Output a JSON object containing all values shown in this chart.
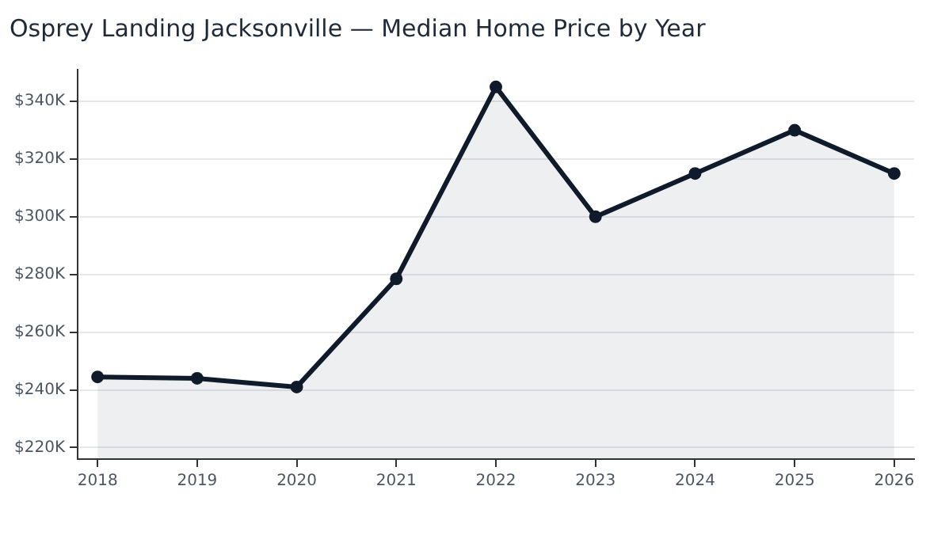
{
  "chart_data": {
    "type": "area",
    "title": "Osprey Landing Jacksonville — Median Home Price by Year",
    "x": [
      2018,
      2019,
      2020,
      2021,
      2022,
      2023,
      2024,
      2025,
      2026
    ],
    "series": [
      {
        "color": "#0f1a2b",
        "values": [
          244.5,
          244,
          241,
          278.5,
          345,
          300,
          315,
          330,
          315
        ]
      }
    ],
    "xlim": [
      2017.8,
      2026.2
    ],
    "xticks": [
      2018,
      2019,
      2020,
      2021,
      2022,
      2023,
      2024,
      2025,
      2026
    ],
    "ylim": [
      216,
      351
    ],
    "yticks": [
      {
        "value": 220,
        "label": "$220K"
      },
      {
        "value": 240,
        "label": "$240K"
      },
      {
        "value": 260,
        "label": "$260K"
      },
      {
        "value": 280,
        "label": "$280K"
      },
      {
        "value": 300,
        "label": "$300K"
      },
      {
        "value": 320,
        "label": "$320K"
      },
      {
        "value": 340,
        "label": "$340K"
      }
    ],
    "grid": "y",
    "legend": false,
    "marker": "circle",
    "line_style": "solid"
  }
}
